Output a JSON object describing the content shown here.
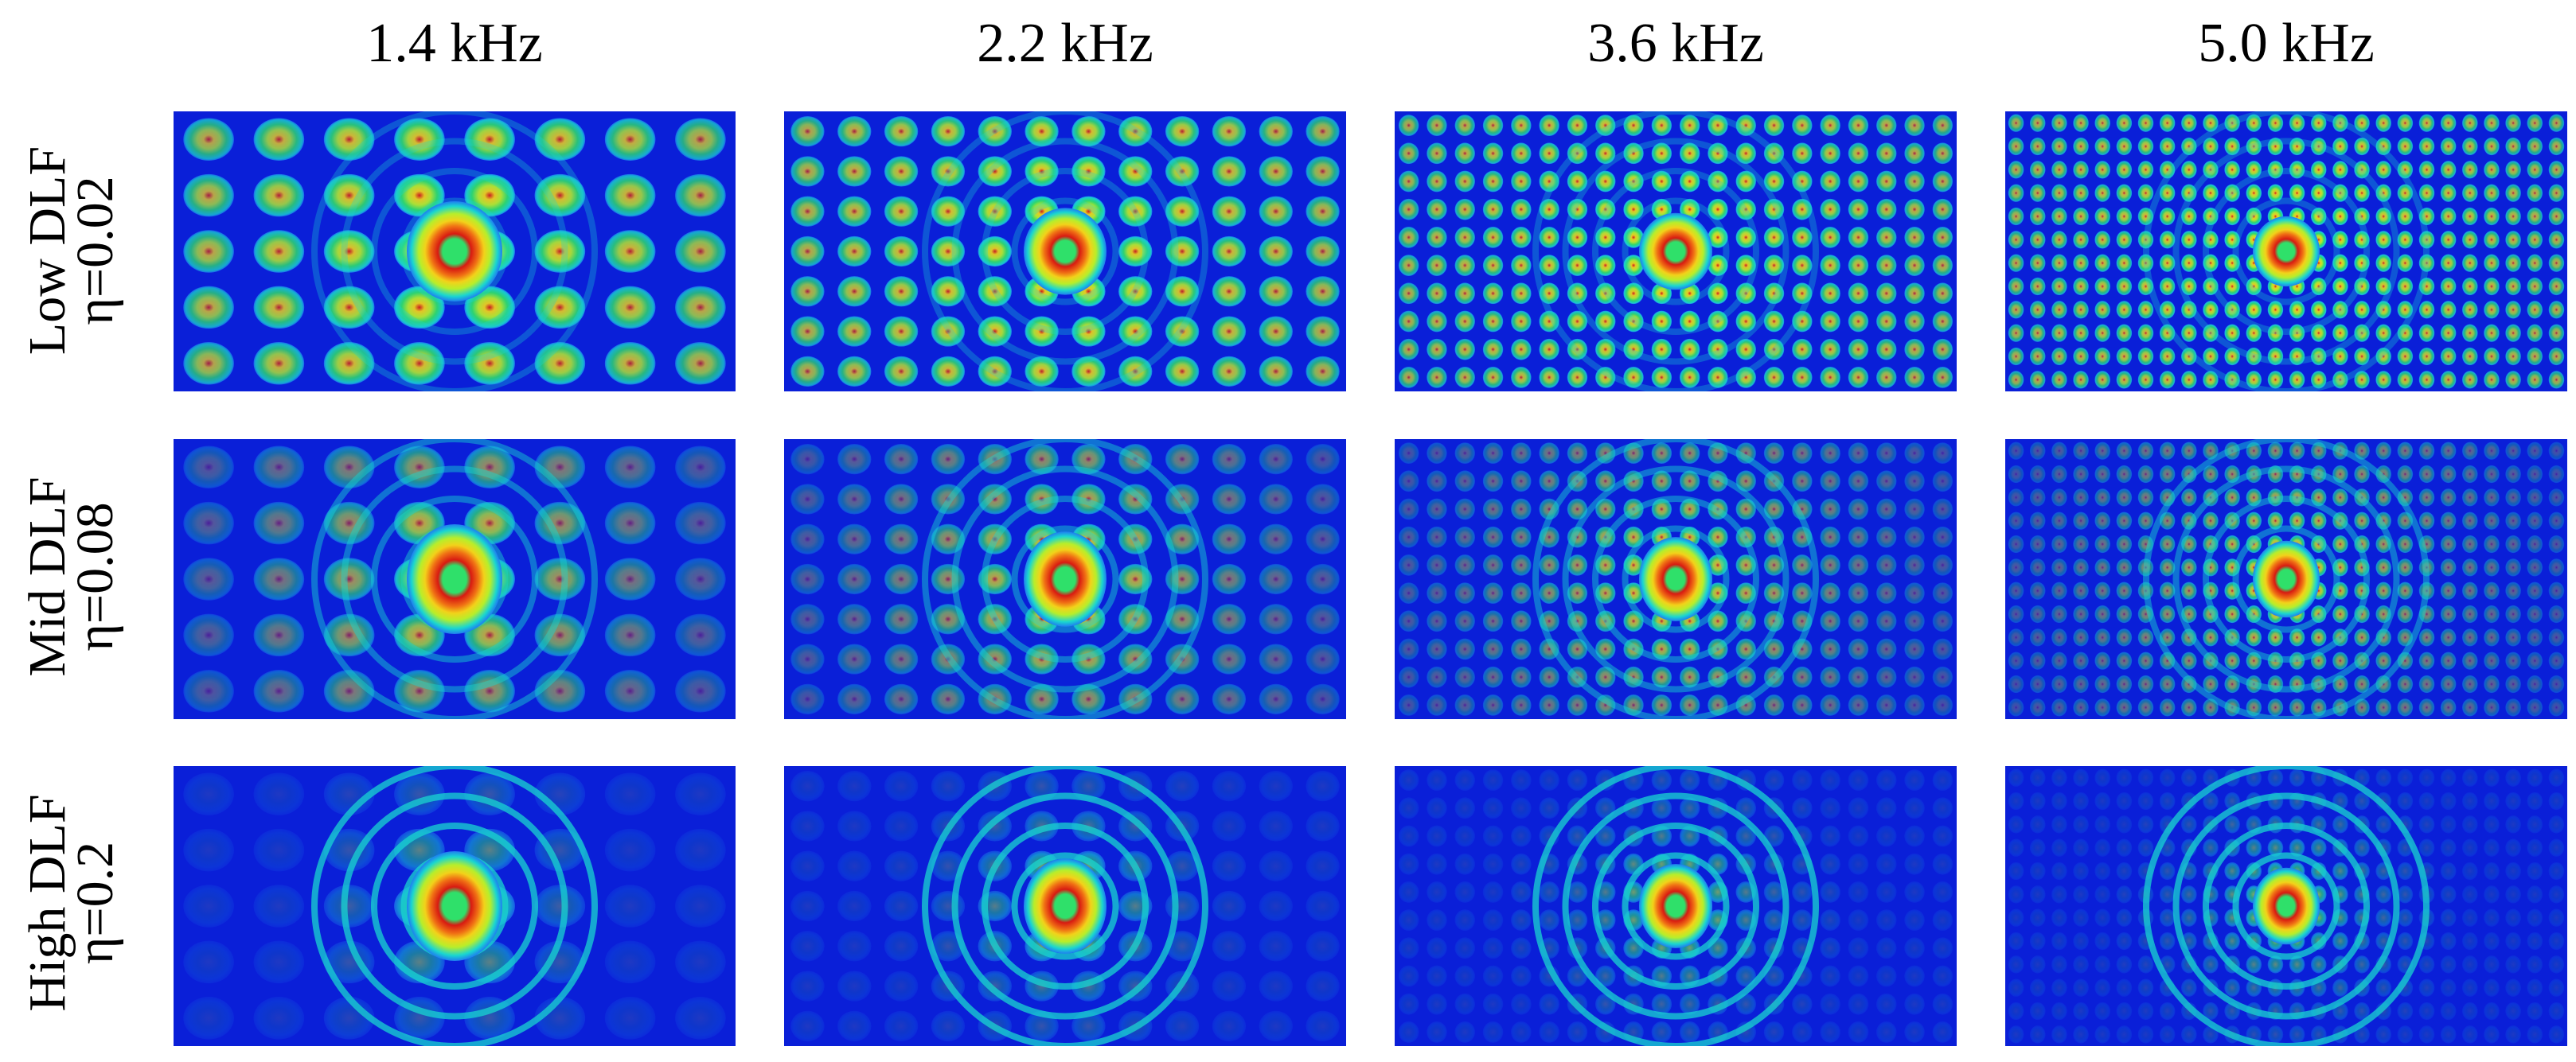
{
  "figure": {
    "columns": [
      {
        "label": "1.4 kHz"
      },
      {
        "label": "2.2 kHz"
      },
      {
        "label": "3.6 kHz"
      },
      {
        "label": "5.0 kHz"
      }
    ],
    "rows": [
      {
        "label": "Low DLF",
        "eta": "η=0.02",
        "eta_value": 0.02
      },
      {
        "label": "Mid DLF",
        "eta": "η=0.08",
        "eta_value": 0.08
      },
      {
        "label": "High DLF",
        "eta": "η=0.2",
        "eta_value": 0.2
      }
    ],
    "frequencies_khz": [
      1.4,
      2.2,
      3.6,
      5.0
    ],
    "colormap": [
      "#0a1fd8",
      "#1f7ef0",
      "#19d6d0",
      "#2fe06a",
      "#b8ee2a",
      "#f2d21a",
      "#f07014",
      "#d81a12"
    ]
  }
}
